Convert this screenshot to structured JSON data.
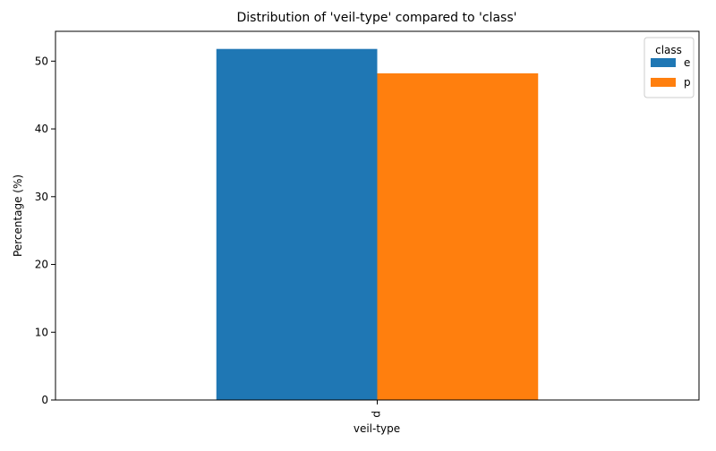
{
  "chart_data": {
    "type": "bar",
    "title": "Distribution of 'veil-type' compared to 'class'",
    "xlabel": "veil-type",
    "ylabel": "Percentage (%)",
    "categories": [
      "p"
    ],
    "series": [
      {
        "name": "e",
        "values": [
          51.8
        ],
        "color": "#1f77b4"
      },
      {
        "name": "p",
        "values": [
          48.2
        ],
        "color": "#ff7f0e"
      }
    ],
    "ylim": [
      0,
      54.4
    ],
    "yticks": [
      0,
      10,
      20,
      30,
      40,
      50
    ],
    "legend": {
      "title": "class",
      "position": "top-right"
    },
    "grid": false
  }
}
